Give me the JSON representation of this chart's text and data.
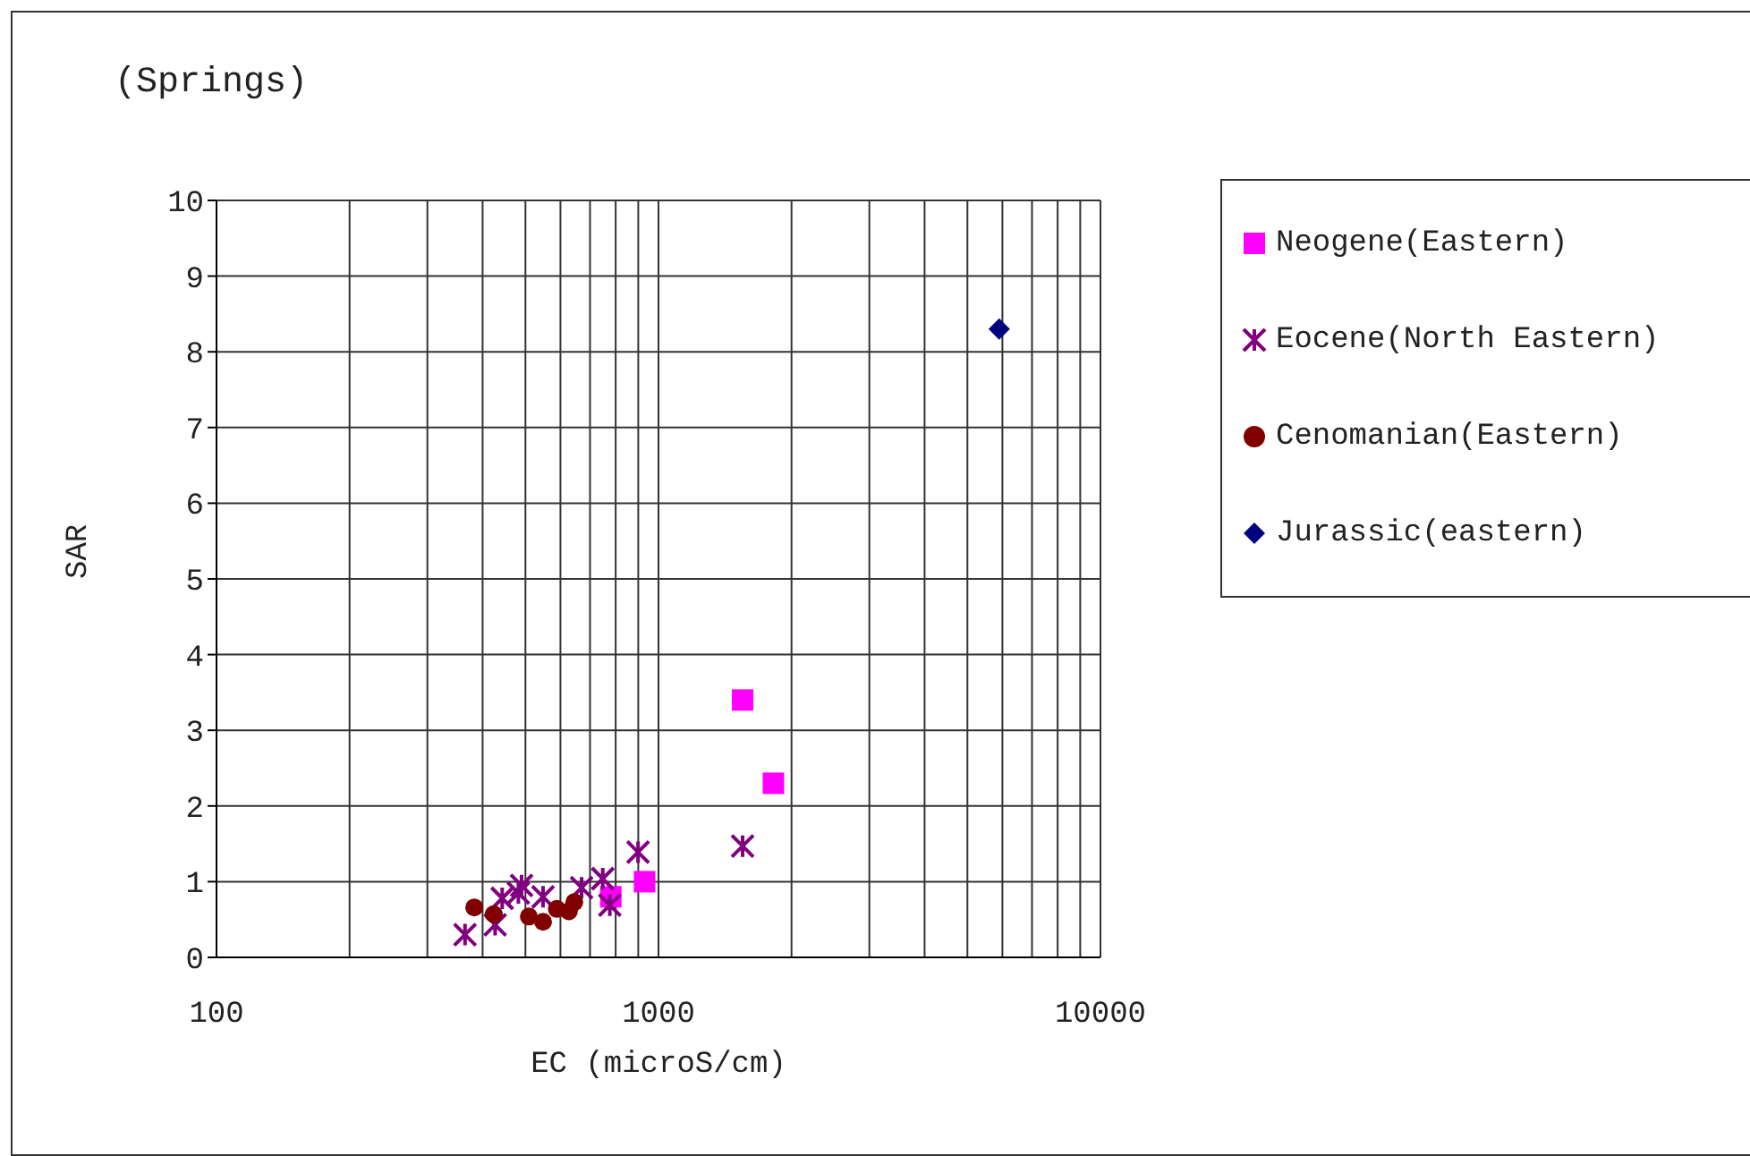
{
  "chart_data": {
    "type": "scatter",
    "title": "(Springs)",
    "xlabel": "EC (microS/cm)",
    "ylabel": "SAR",
    "log": "x",
    "xlim": [
      100,
      10000
    ],
    "xticks": [
      100,
      {
        "value": 200,
        "label": null
      },
      {
        "value": 300,
        "label": null
      },
      {
        "value": 400,
        "label": null
      },
      {
        "value": 500,
        "label": null
      },
      {
        "value": 600,
        "label": null
      },
      {
        "value": 700,
        "label": null
      },
      {
        "value": 800,
        "label": null
      },
      {
        "value": 900,
        "label": null
      },
      1000,
      {
        "value": 2000,
        "label": null
      },
      {
        "value": 3000,
        "label": null
      },
      {
        "value": 4000,
        "label": null
      },
      {
        "value": 5000,
        "label": null
      },
      {
        "value": 6000,
        "label": null
      },
      {
        "value": 7000,
        "label": null
      },
      {
        "value": 8000,
        "label": null
      },
      {
        "value": 9000,
        "label": null
      },
      10000
    ],
    "ylim": [
      0,
      10
    ],
    "yticks": [
      0,
      1,
      2,
      3,
      4,
      5,
      6,
      7,
      8,
      9,
      10
    ],
    "grid": true,
    "legend": "right",
    "series": [
      {
        "name": "Neogene(Eastern)",
        "color": "#ff00ff",
        "marker": "square",
        "x": [
          1550,
          1820,
          930,
          780
        ],
        "values": [
          3.4,
          2.3,
          1.0,
          0.8
        ]
      },
      {
        "name": "Eocene(North Eastern)",
        "color": "#800080",
        "marker": "cross",
        "x": [
          365,
          427,
          490,
          443,
          548,
          670,
          748,
          776,
          899,
          1550,
          482
        ],
        "values": [
          0.3,
          0.43,
          0.95,
          0.78,
          0.8,
          0.92,
          1.04,
          0.69,
          1.39,
          1.47,
          0.85
        ]
      },
      {
        "name": "Cenomanian(Eastern)",
        "color": "#800000",
        "marker": "circle",
        "x": [
          383,
          424,
          509,
          548,
          589,
          645,
          627
        ],
        "values": [
          0.66,
          0.57,
          0.54,
          0.47,
          0.64,
          0.73,
          0.61
        ]
      },
      {
        "name": "Jurassic(eastern)",
        "color": "#000080",
        "marker": "diamond",
        "x": [
          5900
        ],
        "values": [
          8.3
        ]
      }
    ]
  }
}
